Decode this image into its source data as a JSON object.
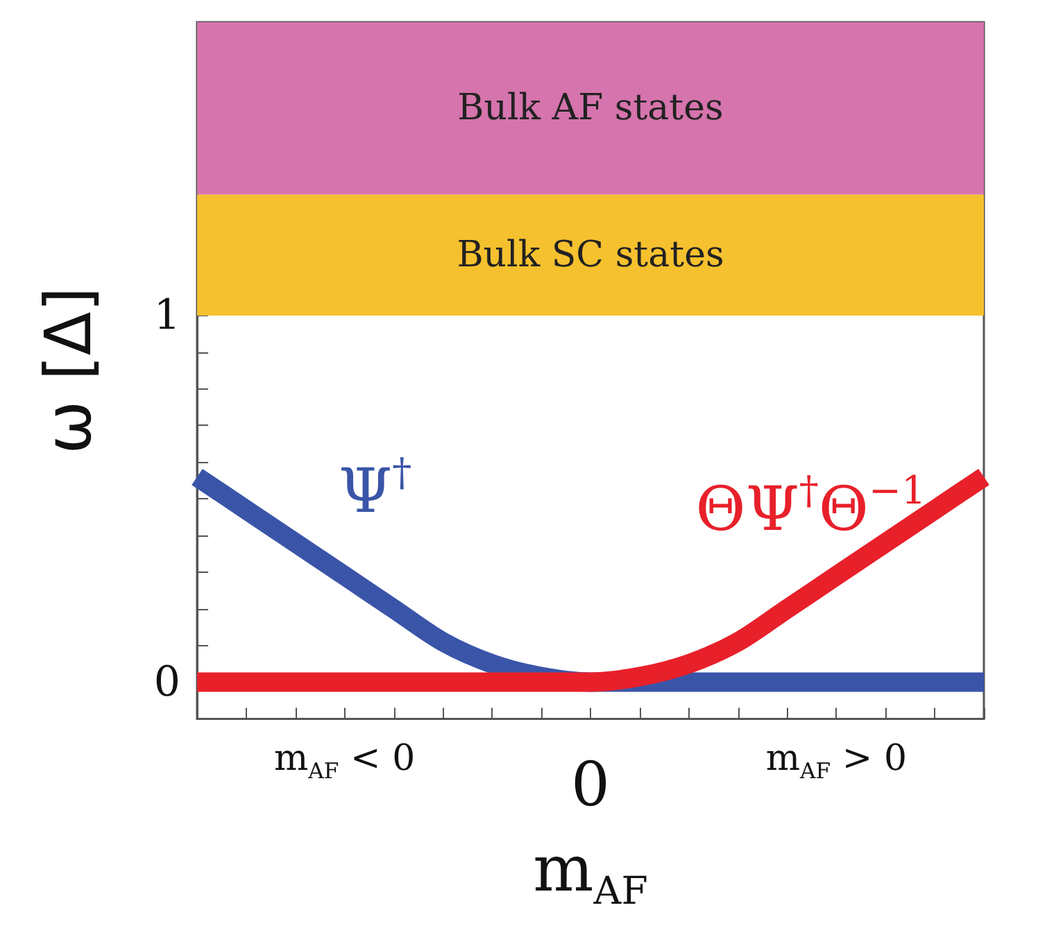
{
  "chart_data": {
    "type": "line",
    "ylabel": "ω [Δ]",
    "xlabel": "m$_{AF}$",
    "categories": [
      null,
      null,
      null,
      "m$_{AF}$ < 0",
      null,
      null,
      null,
      null,
      "0",
      null,
      null,
      null,
      null,
      "m$_{AF}$ > 0",
      null,
      null,
      null
    ],
    "ylim": [
      -0.1,
      1.8
    ],
    "yticks": [
      0,
      {
        "value": 0.1,
        "label": null
      },
      {
        "value": 0.2,
        "label": null
      },
      {
        "value": 0.3,
        "label": null
      },
      {
        "value": 0.4,
        "label": null
      },
      {
        "value": 0.5,
        "label": null
      },
      {
        "value": 0.6,
        "label": null
      },
      {
        "value": 0.7,
        "label": null
      },
      {
        "value": 0.8,
        "label": null
      },
      {
        "value": 0.9,
        "label": null
      },
      1
    ],
    "grid": false,
    "legend": false,
    "bands": [
      {
        "axis": "y",
        "from": 1,
        "to": 1.33,
        "label": "Bulk SC states",
        "color": "#f5c12e"
      },
      {
        "axis": "y",
        "from": 1.33,
        "to": 1.8,
        "label": "Bulk AF states",
        "color": "#d674ad"
      }
    ],
    "series": [
      {
        "name": "Ψ$^{†}$",
        "color": "#3a55a8",
        "values": [
          0.56,
          0.47,
          0.38,
          0.29,
          0.2,
          0.11,
          0.05,
          0.015,
          0,
          0,
          0,
          0,
          0,
          0,
          0,
          0,
          0
        ]
      },
      {
        "name": "ΘΨ$^{†}$Θ$^{−1}$",
        "color": "#e8202a",
        "values": [
          0,
          0,
          0,
          0,
          0,
          0,
          0,
          0,
          0,
          0.015,
          0.05,
          0.11,
          0.2,
          0.29,
          0.38,
          0.47,
          0.56
        ]
      }
    ]
  }
}
